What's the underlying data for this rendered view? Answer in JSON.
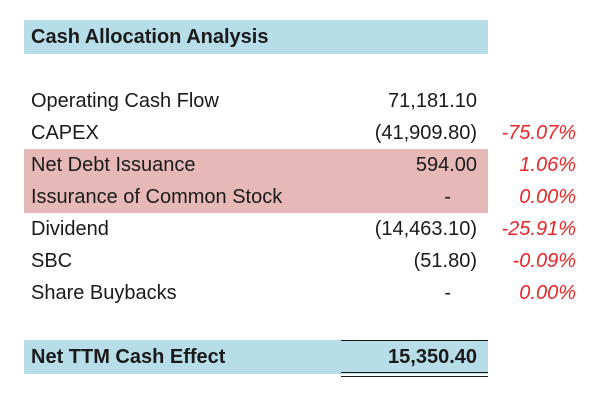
{
  "title": "Cash Allocation Analysis",
  "rows": [
    {
      "label": "Operating Cash Flow",
      "value": "71,181.10",
      "pct": ""
    },
    {
      "label": "CAPEX",
      "value": "(41,909.80)",
      "pct": "-75.07%"
    },
    {
      "label": "Net Debt Issuance",
      "value": "594.00",
      "pct": "1.06%"
    },
    {
      "label": "Issurance of Common Stock",
      "value": "-",
      "pct": "0.00%"
    },
    {
      "label": "Dividend",
      "value": "(14,463.10)",
      "pct": "-25.91%"
    },
    {
      "label": "SBC",
      "value": "(51.80)",
      "pct": "-0.09%"
    },
    {
      "label": "Share Buybacks",
      "value": "-",
      "pct": "0.00%"
    }
  ],
  "total": {
    "label": "Net TTM Cash Effect",
    "value": "15,350.40"
  },
  "colors": {
    "header_fill": "#b7dde8",
    "highlight_fill": "#e6b9b8",
    "percent_text": "#e8262a"
  }
}
